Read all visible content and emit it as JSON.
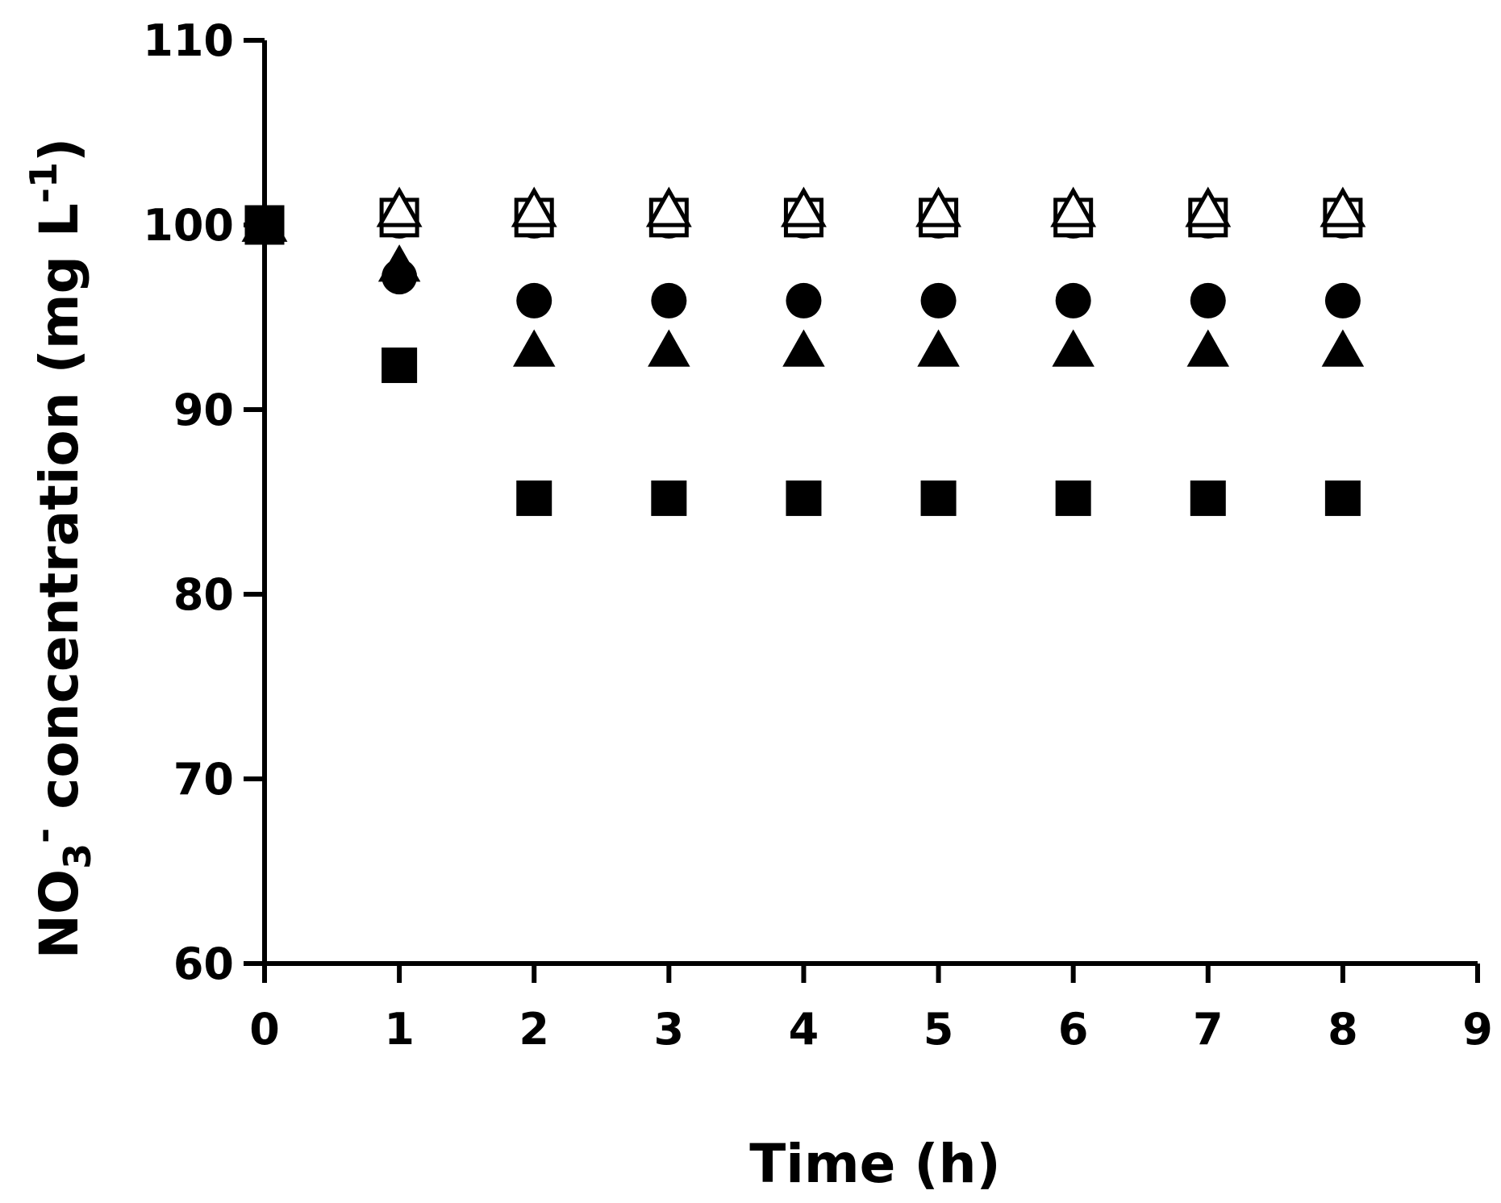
{
  "chart_data": {
    "type": "scatter",
    "title": "",
    "xlabel": "Time (h)",
    "ylabel": {
      "base": "NO",
      "subscript": "3",
      "superscript": "-",
      "text": " concentration (mg L",
      "unit_exp": "-1",
      "close": ")"
    },
    "xlim": [
      0,
      9
    ],
    "ylim": [
      60,
      110
    ],
    "xticks": [
      "0",
      "1",
      "2",
      "3",
      "4",
      "5",
      "6",
      "7",
      "8",
      "9"
    ],
    "yticks": [
      "60",
      "70",
      "80",
      "90",
      "100",
      "110"
    ],
    "grid": false,
    "legend": "none",
    "series": [
      {
        "marker": "square-filled",
        "x": [
          0,
          1,
          2,
          3,
          4,
          5,
          6,
          7,
          8
        ],
        "y": [
          100,
          92.4,
          85.2,
          85.2,
          85.2,
          85.2,
          85.2,
          85.2,
          85.2
        ]
      },
      {
        "marker": "triangle-filled",
        "x": [
          0,
          1,
          2,
          3,
          4,
          5,
          6,
          7,
          8
        ],
        "y": [
          100,
          97.8,
          93.2,
          93.2,
          93.2,
          93.2,
          93.2,
          93.2,
          93.2
        ]
      },
      {
        "marker": "circle-filled",
        "x": [
          0,
          1,
          2,
          3,
          4,
          5,
          6,
          7,
          8
        ],
        "y": [
          100,
          97.2,
          95.9,
          95.9,
          95.9,
          95.9,
          95.9,
          95.9,
          95.9
        ]
      },
      {
        "marker": "square-open",
        "x": [
          0,
          1,
          2,
          3,
          4,
          5,
          6,
          7,
          8
        ],
        "y": [
          100,
          100.4,
          100.4,
          100.4,
          100.4,
          100.4,
          100.4,
          100.4,
          100.4
        ]
      },
      {
        "marker": "triangle-open",
        "x": [
          0,
          1,
          2,
          3,
          4,
          5,
          6,
          7,
          8
        ],
        "y": [
          100,
          100.8,
          100.8,
          100.8,
          100.8,
          100.8,
          100.8,
          100.8,
          100.8
        ]
      },
      {
        "marker": "circle-open",
        "x": [
          0,
          1,
          2,
          3,
          4,
          5,
          6,
          7,
          8
        ],
        "y": [
          100,
          100.2,
          100.2,
          100.2,
          100.2,
          100.2,
          100.2,
          100.2,
          100.2
        ]
      }
    ],
    "colors": {
      "marker": "#000000",
      "axis": "#000000",
      "background": "#ffffff"
    }
  }
}
